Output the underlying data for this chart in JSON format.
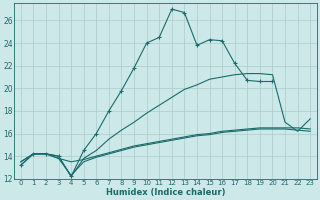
{
  "xlabel": "Humidex (Indice chaleur)",
  "bg_color": "#cde8e8",
  "grid_color": "#aacccc",
  "line_color": "#1a6b6b",
  "xlim": [
    -0.5,
    23.5
  ],
  "ylim": [
    12,
    27.5
  ],
  "xticks": [
    0,
    1,
    2,
    3,
    4,
    5,
    6,
    7,
    8,
    9,
    10,
    11,
    12,
    13,
    14,
    15,
    16,
    17,
    18,
    19,
    20,
    21,
    22,
    23
  ],
  "yticks": [
    12,
    14,
    16,
    18,
    20,
    22,
    24,
    26
  ],
  "line_peaked_x": [
    0,
    1,
    2,
    3,
    4,
    5,
    6,
    7,
    8,
    9,
    10,
    11,
    12,
    13,
    14,
    15,
    16,
    17,
    18,
    19,
    20
  ],
  "line_peaked_y": [
    13.2,
    14.2,
    14.2,
    14.0,
    12.2,
    14.5,
    16.0,
    18.0,
    19.8,
    21.8,
    24.0,
    24.5,
    27.0,
    26.7,
    23.8,
    24.3,
    24.2,
    22.2,
    20.7,
    20.6,
    20.6
  ],
  "line_smooth_x": [
    0,
    1,
    2,
    3,
    4,
    5,
    6,
    7,
    8,
    9,
    10,
    11,
    12,
    13,
    14,
    15,
    16,
    17,
    18,
    19,
    20,
    21,
    22,
    23
  ],
  "line_smooth_y": [
    13.2,
    14.2,
    14.2,
    14.0,
    12.2,
    13.8,
    14.5,
    15.5,
    16.3,
    17.0,
    17.8,
    18.5,
    19.2,
    19.9,
    20.3,
    20.8,
    21.0,
    21.2,
    21.3,
    21.3,
    21.2,
    17.0,
    16.2,
    17.3
  ],
  "line_flat1_x": [
    0,
    1,
    2,
    3,
    4,
    5,
    6,
    7,
    8,
    9,
    10,
    11,
    12,
    13,
    14,
    15,
    16,
    17,
    18,
    19,
    20,
    21,
    22,
    23
  ],
  "line_flat1_y": [
    13.5,
    14.2,
    14.2,
    13.8,
    13.5,
    13.7,
    14.0,
    14.3,
    14.6,
    14.9,
    15.1,
    15.3,
    15.5,
    15.7,
    15.9,
    16.0,
    16.2,
    16.3,
    16.4,
    16.5,
    16.5,
    16.5,
    16.5,
    16.4
  ],
  "line_flat2_x": [
    0,
    1,
    2,
    3,
    4,
    5,
    6,
    7,
    8,
    9,
    10,
    11,
    12,
    13,
    14,
    15,
    16,
    17,
    18,
    19,
    20,
    21,
    22,
    23
  ],
  "line_flat2_y": [
    13.5,
    14.2,
    14.2,
    13.8,
    12.3,
    13.5,
    13.9,
    14.2,
    14.5,
    14.8,
    15.0,
    15.2,
    15.4,
    15.6,
    15.8,
    15.9,
    16.1,
    16.2,
    16.3,
    16.4,
    16.4,
    16.4,
    16.3,
    16.2
  ]
}
